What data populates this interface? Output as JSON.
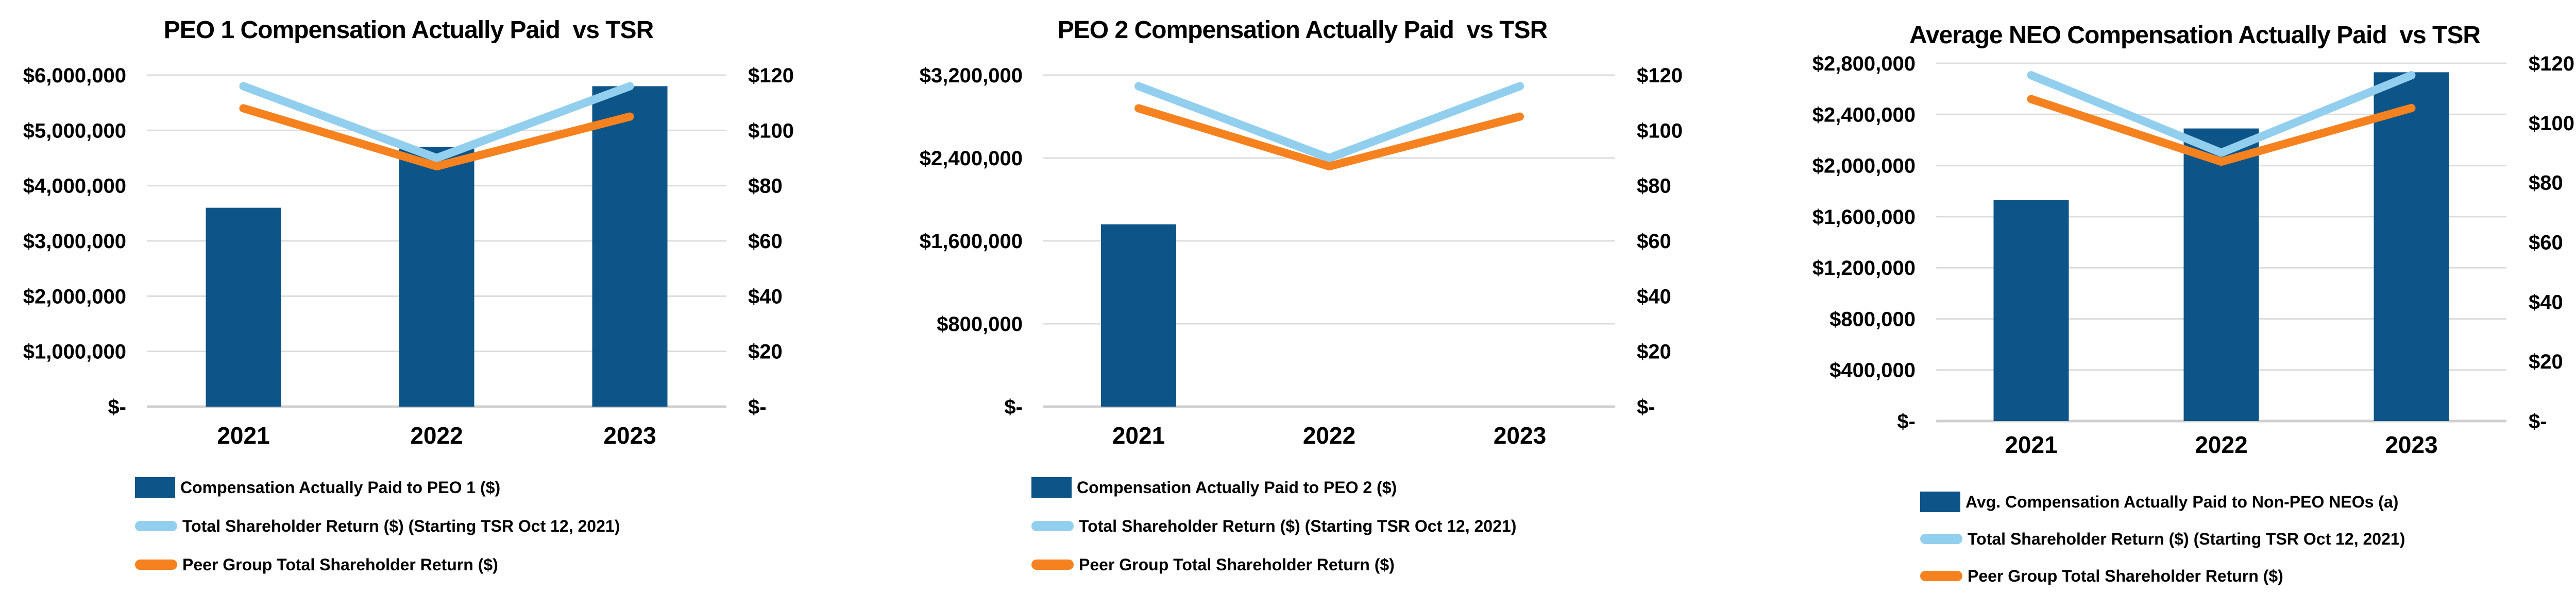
{
  "colors": {
    "bar": "#0D5488",
    "tsr_line": "#92CFEE",
    "peer_line": "#F6821F",
    "gridline": "#DCDCDC",
    "axis_baseline": "#CFCFCF",
    "text": "#000000",
    "background": "#FFFFFF"
  },
  "chart_data": [
    {
      "type": "bar-line-combo",
      "title": "PEO 1 Compensation Actually Paid  vs TSR",
      "categories": [
        "2021",
        "2022",
        "2023"
      ],
      "bar_series": {
        "name": "Compensation Actually Paid to PEO 1 ($)",
        "axis": "left",
        "values": [
          3600000,
          4700000,
          5800000
        ]
      },
      "line_series": [
        {
          "name": "Total Shareholder Return ($) (Starting TSR Oct 12, 2021)",
          "axis": "right",
          "values": [
            116,
            90,
            116
          ]
        },
        {
          "name": "Peer Group Total Shareholder Return ($)",
          "axis": "right",
          "values": [
            108,
            87,
            105
          ]
        }
      ],
      "left_axis": {
        "min": 0,
        "max": 6000000,
        "step": 1000000,
        "ticks": [
          "$6,000,000",
          "$5,000,000",
          "$4,000,000",
          "$3,000,000",
          "$2,000,000",
          "$1,000,000",
          "$-"
        ]
      },
      "right_axis": {
        "min": 0,
        "max": 120,
        "step": 20,
        "ticks": [
          "$120",
          "$100",
          "$80",
          "$60",
          "$40",
          "$20",
          "$-"
        ]
      },
      "grid": true,
      "legend_position": "bottom-left"
    },
    {
      "type": "bar-line-combo",
      "title": "PEO 2 Compensation Actually Paid  vs TSR",
      "categories": [
        "2021",
        "2022",
        "2023"
      ],
      "bar_series": {
        "name": "Compensation Actually Paid to PEO 2 ($)",
        "axis": "left",
        "values": [
          1760000,
          null,
          null
        ]
      },
      "line_series": [
        {
          "name": "Total Shareholder Return ($) (Starting TSR Oct 12, 2021)",
          "axis": "right",
          "values": [
            116,
            90,
            116
          ]
        },
        {
          "name": "Peer Group Total Shareholder Return ($)",
          "axis": "right",
          "values": [
            108,
            87,
            105
          ]
        }
      ],
      "left_axis": {
        "min": 0,
        "max": 3200000,
        "step": 800000,
        "ticks": [
          "$3,200,000",
          "$2,400,000",
          "$1,600,000",
          "$800,000",
          "$-"
        ]
      },
      "right_axis": {
        "min": 0,
        "max": 120,
        "step": 20,
        "ticks": [
          "$120",
          "$100",
          "$80",
          "$60",
          "$40",
          "$20",
          "$-"
        ]
      },
      "grid": true,
      "legend_position": "bottom-left"
    },
    {
      "type": "bar-line-combo",
      "title": "Average NEO Compensation Actually Paid  vs TSR",
      "categories": [
        "2021",
        "2022",
        "2023"
      ],
      "bar_series": {
        "name": "Avg. Compensation Actually Paid to Non-PEO NEOs (a)",
        "axis": "left",
        "values": [
          1730000,
          2290000,
          2730000
        ]
      },
      "line_series": [
        {
          "name": "Total Shareholder Return ($) (Starting TSR Oct 12, 2021)",
          "axis": "right",
          "values": [
            116,
            90,
            116
          ]
        },
        {
          "name": "Peer Group Total Shareholder Return ($)",
          "axis": "right",
          "values": [
            108,
            87,
            105
          ]
        }
      ],
      "left_axis": {
        "min": 0,
        "max": 2800000,
        "step": 400000,
        "ticks": [
          "$2,800,000",
          "$2,400,000",
          "$2,000,000",
          "$1,600,000",
          "$1,200,000",
          "$800,000",
          "$400,000",
          "$-"
        ]
      },
      "right_axis": {
        "min": 0,
        "max": 120,
        "step": 20,
        "ticks": [
          "$120",
          "$100",
          "$80",
          "$60",
          "$40",
          "$20",
          "$-"
        ]
      },
      "grid": true,
      "legend_position": "bottom-left"
    }
  ]
}
